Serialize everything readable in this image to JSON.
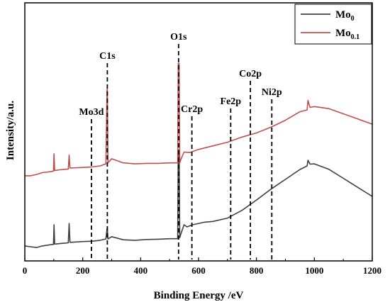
{
  "chart_data": {
    "type": "line",
    "xlabel": "Binding Energy /eV",
    "ylabel": "Intensity/a.u.",
    "xlim": [
      0,
      1200
    ],
    "ylim": [
      0,
      100
    ],
    "xticks": [
      "0",
      "200",
      "400",
      "600",
      "800",
      "1000",
      "1200"
    ],
    "grid": false,
    "legend": {
      "placement": "top-right",
      "entries": [
        {
          "base": "Mo",
          "sub": "0",
          "color": "#404040"
        },
        {
          "base": "Mo",
          "sub": "0.1",
          "color": "#c0504d"
        }
      ]
    },
    "peak_labels": [
      {
        "text": "Mo3d",
        "x": 230
      },
      {
        "text": "C1s",
        "x": 285
      },
      {
        "text": "O1s",
        "x": 531
      },
      {
        "text": "Cr2p",
        "x": 577
      },
      {
        "text": "Fe2p",
        "x": 711
      },
      {
        "text": "Co2p",
        "x": 779
      },
      {
        "text": "Ni2p",
        "x": 853
      }
    ],
    "series": [
      {
        "name": "Mo0",
        "color": "#404040",
        "points": [
          [
            0,
            5.8
          ],
          [
            20,
            5.5
          ],
          [
            40,
            5.2
          ],
          [
            60,
            5.8
          ],
          [
            90,
            6.3
          ],
          [
            99,
            6.4
          ],
          [
            101,
            14.0
          ],
          [
            103,
            6.5
          ],
          [
            120,
            6.7
          ],
          [
            150,
            7.0
          ],
          [
            153,
            14.5
          ],
          [
            156,
            7.2
          ],
          [
            200,
            7.5
          ],
          [
            230,
            7.6
          ],
          [
            260,
            8.0
          ],
          [
            280,
            8.5
          ],
          [
            284,
            12.5
          ],
          [
            285,
            12.5
          ],
          [
            287,
            8.5
          ],
          [
            300,
            9.4
          ],
          [
            340,
            8.2
          ],
          [
            380,
            8.0
          ],
          [
            420,
            8.3
          ],
          [
            460,
            8.4
          ],
          [
            500,
            8.6
          ],
          [
            528,
            8.6
          ],
          [
            530,
            43.0
          ],
          [
            533,
            43.0
          ],
          [
            535,
            9.0
          ],
          [
            540,
            10.8
          ],
          [
            550,
            14.0
          ],
          [
            560,
            13.2
          ],
          [
            580,
            14.0
          ],
          [
            620,
            15.0
          ],
          [
            650,
            15.3
          ],
          [
            700,
            16.6
          ],
          [
            750,
            19.6
          ],
          [
            800,
            23.6
          ],
          [
            850,
            27.8
          ],
          [
            900,
            31.6
          ],
          [
            950,
            35.4
          ],
          [
            975,
            36.8
          ],
          [
            978,
            39.0
          ],
          [
            985,
            37.5
          ],
          [
            1000,
            37.6
          ],
          [
            1050,
            35.5
          ],
          [
            1100,
            32.0
          ],
          [
            1150,
            28.5
          ],
          [
            1200,
            25.0
          ]
        ]
      },
      {
        "name": "Mo0.1",
        "color": "#c0504d",
        "points": [
          [
            0,
            33.0
          ],
          [
            20,
            33.0
          ],
          [
            40,
            33.5
          ],
          [
            60,
            34.2
          ],
          [
            90,
            34.6
          ],
          [
            99,
            34.8
          ],
          [
            101,
            41.5
          ],
          [
            103,
            35.0
          ],
          [
            120,
            35.3
          ],
          [
            150,
            35.6
          ],
          [
            153,
            41.0
          ],
          [
            156,
            36.0
          ],
          [
            200,
            36.2
          ],
          [
            230,
            36.4
          ],
          [
            260,
            36.8
          ],
          [
            280,
            37.6
          ],
          [
            284,
            66.5
          ],
          [
            285,
            66.5
          ],
          [
            287,
            38.0
          ],
          [
            300,
            39.6
          ],
          [
            340,
            38.0
          ],
          [
            380,
            37.6
          ],
          [
            420,
            37.8
          ],
          [
            460,
            37.8
          ],
          [
            500,
            38.0
          ],
          [
            528,
            38.0
          ],
          [
            530,
            76.5
          ],
          [
            533,
            76.5
          ],
          [
            535,
            38.0
          ],
          [
            540,
            39.6
          ],
          [
            550,
            42.2
          ],
          [
            570,
            42.0
          ],
          [
            600,
            43.2
          ],
          [
            650,
            44.6
          ],
          [
            700,
            46.0
          ],
          [
            750,
            48.0
          ],
          [
            800,
            49.6
          ],
          [
            850,
            51.8
          ],
          [
            900,
            54.5
          ],
          [
            950,
            57.8
          ],
          [
            975,
            58.5
          ],
          [
            978,
            62.2
          ],
          [
            985,
            59.5
          ],
          [
            1000,
            59.8
          ],
          [
            1050,
            59.0
          ],
          [
            1100,
            57.0
          ],
          [
            1150,
            55.0
          ],
          [
            1200,
            53.0
          ]
        ]
      }
    ]
  }
}
